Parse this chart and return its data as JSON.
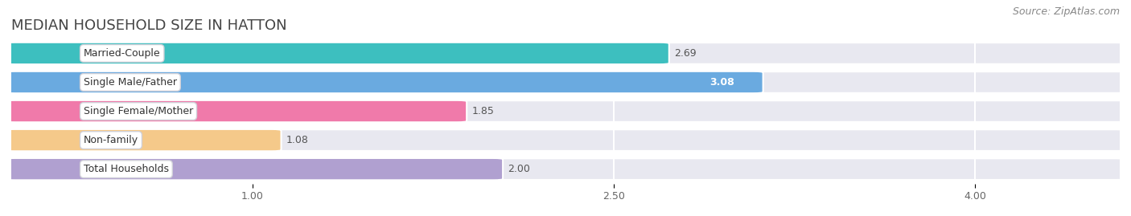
{
  "title": "MEDIAN HOUSEHOLD SIZE IN HATTON",
  "source": "Source: ZipAtlas.com",
  "categories": [
    "Married-Couple",
    "Single Male/Father",
    "Single Female/Mother",
    "Non-family",
    "Total Households"
  ],
  "values": [
    2.69,
    3.08,
    1.85,
    1.08,
    2.0
  ],
  "bar_colors": [
    "#3dbfbf",
    "#6aaae0",
    "#f07aaa",
    "#f5c98a",
    "#b0a0d0"
  ],
  "value_inside": [
    false,
    true,
    false,
    false,
    false
  ],
  "xlim_left": 0.0,
  "xlim_right": 4.6,
  "xticks": [
    1.0,
    2.5,
    4.0
  ],
  "background_color": "#ffffff",
  "row_bg_color": "#e8e8f0",
  "grid_color": "#d8d8e8",
  "title_fontsize": 13,
  "source_fontsize": 9,
  "label_fontsize": 9,
  "value_fontsize": 9,
  "bar_height": 0.68
}
